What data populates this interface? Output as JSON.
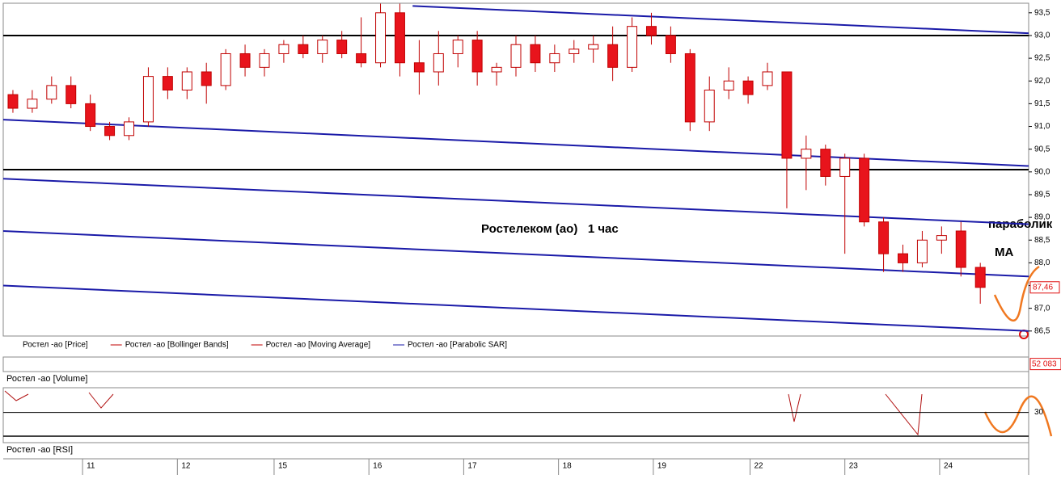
{
  "chart_data": {
    "type": "candlestick",
    "title": "Ростелеком (ао)   1 час",
    "annotations": [
      "параболик",
      "МА"
    ],
    "x": [
      0,
      1,
      2,
      3,
      4,
      5,
      6,
      7,
      8,
      9,
      10,
      11,
      12,
      13,
      14,
      15,
      16,
      17,
      18,
      19,
      20,
      21,
      22,
      23,
      24,
      25,
      26,
      27,
      28,
      29,
      30,
      31,
      32,
      33,
      34,
      35,
      36,
      37,
      38,
      39,
      40,
      41,
      42,
      43,
      44,
      45,
      46,
      47,
      48,
      49,
      50
    ],
    "open": [
      91.7,
      91.4,
      91.6,
      91.9,
      91.5,
      91.0,
      90.8,
      91.1,
      92.1,
      91.8,
      92.2,
      91.9,
      92.6,
      92.3,
      92.6,
      92.8,
      92.6,
      92.9,
      92.6,
      92.4,
      93.5,
      92.4,
      92.2,
      92.6,
      92.9,
      92.2,
      92.3,
      92.8,
      92.4,
      92.6,
      92.7,
      92.8,
      92.3,
      93.2,
      93.0,
      92.6,
      91.1,
      91.8,
      92.0,
      91.9,
      92.2,
      90.3,
      90.5,
      89.9,
      90.3,
      88.9,
      88.2,
      88.0,
      88.5,
      88.7,
      87.9
    ],
    "high": [
      91.8,
      91.8,
      92.1,
      92.1,
      91.7,
      91.1,
      91.2,
      92.3,
      92.3,
      92.3,
      92.4,
      92.7,
      92.8,
      92.7,
      92.9,
      93.0,
      93.0,
      93.1,
      93.4,
      93.7,
      93.7,
      92.9,
      93.1,
      93.0,
      93.1,
      92.4,
      93.0,
      93.0,
      92.8,
      92.9,
      93.0,
      93.2,
      93.4,
      93.5,
      93.2,
      92.7,
      92.1,
      92.3,
      92.1,
      92.4,
      92.2,
      90.8,
      90.6,
      90.4,
      90.4,
      89.0,
      88.4,
      88.7,
      88.8,
      88.9,
      88.0
    ],
    "low": [
      91.3,
      91.3,
      91.5,
      91.4,
      90.9,
      90.7,
      90.7,
      91.0,
      91.6,
      91.6,
      91.5,
      91.8,
      92.1,
      92.1,
      92.4,
      92.5,
      92.4,
      92.5,
      92.3,
      92.3,
      92.1,
      91.7,
      91.9,
      92.3,
      91.9,
      91.9,
      92.1,
      92.2,
      92.2,
      92.4,
      92.4,
      92.0,
      92.2,
      92.8,
      92.4,
      90.9,
      90.9,
      91.6,
      91.5,
      91.8,
      89.2,
      89.6,
      89.7,
      88.2,
      88.8,
      87.8,
      87.8,
      87.9,
      88.2,
      87.7,
      87.1
    ],
    "close": [
      91.4,
      91.6,
      91.9,
      91.5,
      91.0,
      90.8,
      91.1,
      92.1,
      91.8,
      92.2,
      91.9,
      92.6,
      92.3,
      92.6,
      92.8,
      92.6,
      92.9,
      92.6,
      92.4,
      93.5,
      92.4,
      92.2,
      92.6,
      92.9,
      92.2,
      92.3,
      92.8,
      92.4,
      92.6,
      92.7,
      92.8,
      92.3,
      93.2,
      93.0,
      92.6,
      91.1,
      91.8,
      92.0,
      91.7,
      92.2,
      90.3,
      90.5,
      89.9,
      90.3,
      88.9,
      88.2,
      88.0,
      88.5,
      88.6,
      87.9,
      87.46
    ],
    "up_color": "#ffffff",
    "down_color": "#e8141c",
    "wick_color": "#c00000",
    "xlim": [
      -0.5,
      52.5
    ],
    "xticks": [
      {
        "value": 3.6,
        "label": "11"
      },
      {
        "value": 8.5,
        "label": "12"
      },
      {
        "value": 13.5,
        "label": "15"
      },
      {
        "value": 18.4,
        "label": "16"
      },
      {
        "value": 23.3,
        "label": "17"
      },
      {
        "value": 28.2,
        "label": "18"
      },
      {
        "value": 33.1,
        "label": "19"
      },
      {
        "value": 38.1,
        "label": "22"
      },
      {
        "value": 43.0,
        "label": "23"
      },
      {
        "value": 47.9,
        "label": "24"
      }
    ],
    "ylim": [
      86.39,
      93.71
    ],
    "yticks": [
      {
        "value": 86.5,
        "label": "86,5"
      },
      {
        "value": 87.0,
        "label": "87,0"
      },
      {
        "value": 87.5,
        "label": "87,5"
      },
      {
        "value": 88.0,
        "label": "88,0"
      },
      {
        "value": 88.5,
        "label": "88,5"
      },
      {
        "value": 89.0,
        "label": "89,0"
      },
      {
        "value": 89.5,
        "label": "89,5"
      },
      {
        "value": 90.0,
        "label": "90,0"
      },
      {
        "value": 90.5,
        "label": "90,5"
      },
      {
        "value": 91.0,
        "label": "91,0"
      },
      {
        "value": 91.5,
        "label": "91,5"
      },
      {
        "value": 92.0,
        "label": "92,0"
      },
      {
        "value": 92.5,
        "label": "92,5"
      },
      {
        "value": 93.0,
        "label": "93,0"
      },
      {
        "value": 93.5,
        "label": "93,5"
      }
    ],
    "last_price": {
      "value": 87.46,
      "label": "87,46"
    },
    "levels": [
      93.0,
      90.05
    ],
    "level_color": "#000000",
    "trend_color": "#1a1aa8",
    "trend_lines": [
      {
        "x": [
          20.66,
          52.5
        ],
        "y": [
          93.65,
          93.05
        ]
      },
      {
        "x": [
          -0.5,
          52.5
        ],
        "y": [
          91.15,
          90.13
        ]
      },
      {
        "x": [
          -0.5,
          52.5
        ],
        "y": [
          89.85,
          88.85
        ]
      },
      {
        "x": [
          -0.5,
          52.5
        ],
        "y": [
          88.7,
          87.7
        ]
      },
      {
        "x": [
          -0.5,
          52.5
        ],
        "y": [
          87.5,
          86.5
        ]
      }
    ],
    "legend": [
      {
        "name": "Ростел -ао [Price]",
        "color": "#ffffff"
      },
      {
        "name": "Ростел -ао [Bollinger Bands]",
        "color": "#c00000"
      },
      {
        "name": "Ростел -ао [Moving Average]",
        "color": "#c00000"
      },
      {
        "name": "Ростел -ао [Parabolic SAR]",
        "color": "#1a1aa8"
      }
    ],
    "volume": {
      "title": "Ростел -ао [Volume]",
      "last": {
        "value": 52083,
        "label": "52 083"
      },
      "ylim": [
        0,
        100000
      ]
    },
    "rsi": {
      "title": "Ростел -ао [RSI]",
      "ylim": [
        -3,
        57
      ],
      "yticks": [
        30
      ]
    }
  }
}
